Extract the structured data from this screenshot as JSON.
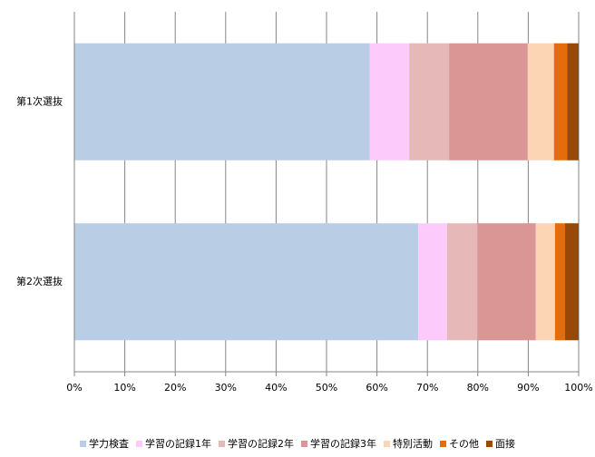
{
  "chart_data": {
    "type": "stacked-bar-horizontal",
    "categories": [
      "第1次選抜",
      "第2次選抜"
    ],
    "series": [
      {
        "name": "学力検査",
        "color": "#b9cde5",
        "values": [
          58.6,
          68.2
        ]
      },
      {
        "name": "学習の記録1年",
        "color": "#fccbfc",
        "values": [
          7.8,
          5.7
        ]
      },
      {
        "name": "学習の記録2年",
        "color": "#e6b9b8",
        "values": [
          7.9,
          6.0
        ]
      },
      {
        "name": "学習の記録3年",
        "color": "#d99694",
        "values": [
          15.6,
          11.6
        ]
      },
      {
        "name": "特別活動",
        "color": "#fcd5b5",
        "values": [
          5.2,
          3.8
        ]
      },
      {
        "name": "その他",
        "color": "#e46c0a",
        "values": [
          2.6,
          2.0
        ]
      },
      {
        "name": "面接",
        "color": "#984807",
        "values": [
          2.3,
          2.7
        ]
      }
    ],
    "xlim": [
      0,
      100
    ],
    "xticks": [
      {
        "value": 0,
        "label": "0%"
      },
      {
        "value": 10,
        "label": "10%"
      },
      {
        "value": 20,
        "label": "20%"
      },
      {
        "value": 30,
        "label": "30%"
      },
      {
        "value": 40,
        "label": "40%"
      },
      {
        "value": 50,
        "label": "50%"
      },
      {
        "value": 60,
        "label": "60%"
      },
      {
        "value": 70,
        "label": "70%"
      },
      {
        "value": 80,
        "label": "80%"
      },
      {
        "value": 90,
        "label": "90%"
      },
      {
        "value": 100,
        "label": "100%"
      }
    ],
    "grid": true,
    "legend": "bottom"
  }
}
